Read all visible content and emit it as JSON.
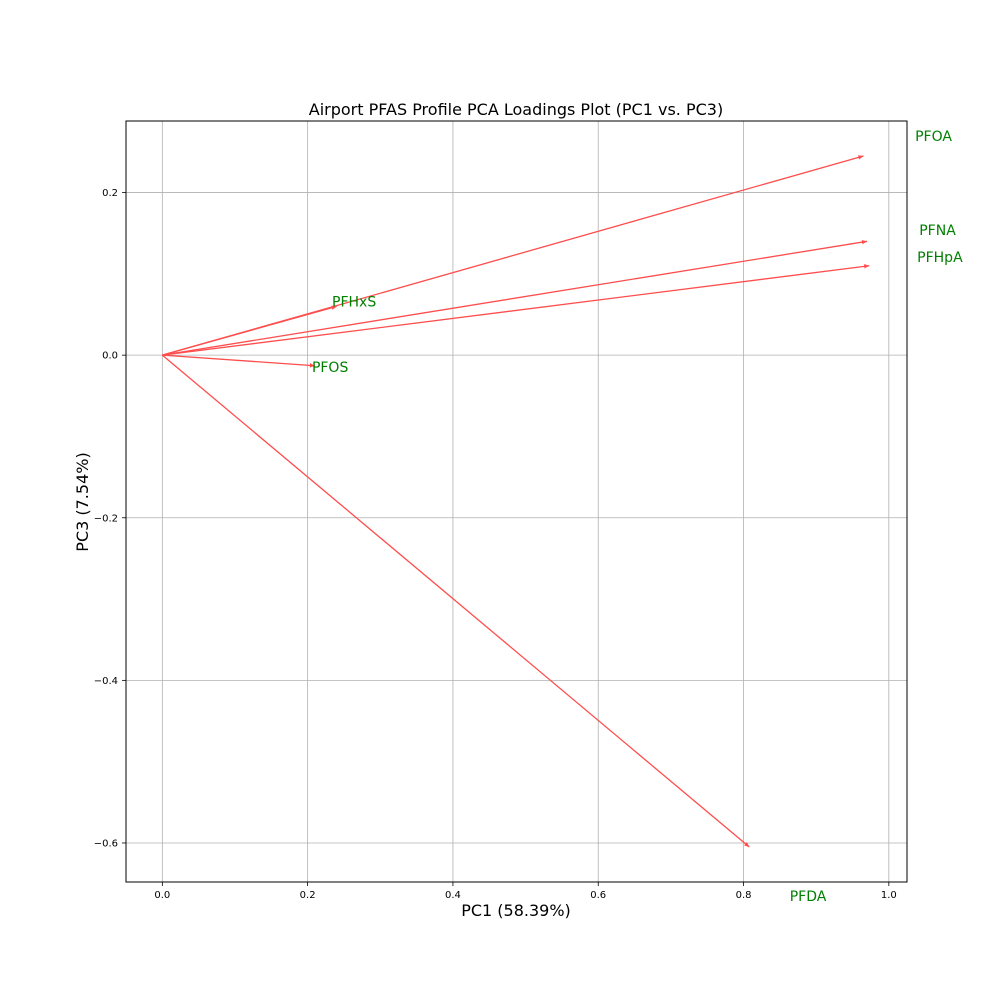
{
  "chart_data": {
    "type": "scatter",
    "title": "Airport PFAS Profile PCA Loadings Plot (PC1 vs. PC3)",
    "xlabel": "PC1 (58.39%)",
    "ylabel": "PC3 (7.54%)",
    "xlim": [
      -0.05,
      1.025
    ],
    "ylim": [
      -0.648,
      0.288
    ],
    "xticks": [
      0.0,
      0.2,
      0.4,
      0.6,
      0.8,
      1.0
    ],
    "xtick_labels": [
      "0.0",
      "0.2",
      "0.4",
      "0.6",
      "0.8",
      "1.0"
    ],
    "yticks": [
      -0.6,
      -0.4,
      -0.2,
      0.0,
      0.2
    ],
    "ytick_labels": [
      "−0.6",
      "−0.4",
      "−0.2",
      "0.0",
      "0.2"
    ],
    "grid": true,
    "origin": [
      0.0,
      0.0
    ],
    "vectors": [
      {
        "name": "PFOA",
        "x": 0.965,
        "y": 0.245
      },
      {
        "name": "PFNA",
        "x": 0.97,
        "y": 0.14
      },
      {
        "name": "PFHpA",
        "x": 0.973,
        "y": 0.11
      },
      {
        "name": "PFHxS",
        "x": 0.24,
        "y": 0.06
      },
      {
        "name": "PFOS",
        "x": 0.21,
        "y": -0.013
      },
      {
        "name": "PFDA",
        "x": 0.808,
        "y": -0.605
      }
    ],
    "colors": {
      "arrow": "#ff4d4d",
      "label": "#008000",
      "grid": "#b0b0b0"
    }
  }
}
